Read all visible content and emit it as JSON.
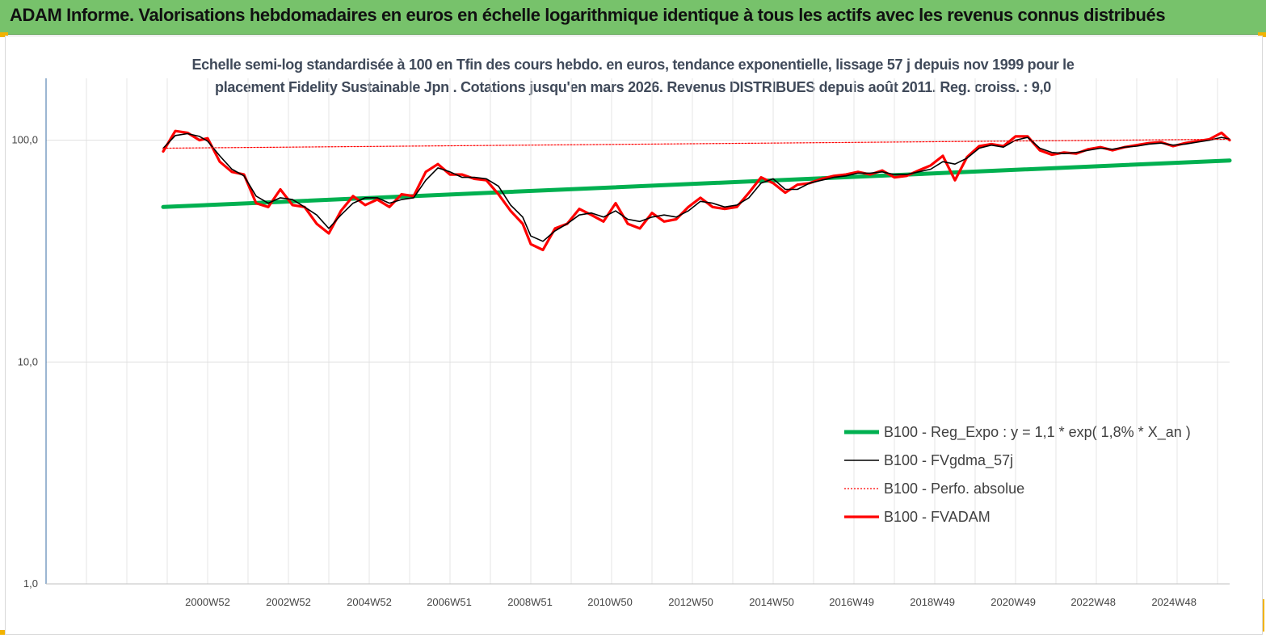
{
  "header": {
    "title": "ADAM Informe. Valorisations hebdomadaires en euros en échelle logarithmique identique à tous les actifs avec les revenus connus distribués"
  },
  "colors": {
    "banner": "#77c26b",
    "regression": "#00b050",
    "smoothed": "#000000",
    "perf_absolue": "#ff0000",
    "fvadam": "#ff0000"
  },
  "chart_data": {
    "type": "line",
    "title_lines": [
      "Echelle semi-log standardisée à 100 en Tfin des cours hebdo. en euros, tendance exponentielle, lissage 57 j depuis nov 1999 pour le",
      "placement Fidelity Sustainable Jpn . Cotations jusqu'en mars 2026. Revenus DISTRIBUES depuis août 2011. Reg. croiss. : 9,0"
    ],
    "y_scale": "log",
    "ylim": [
      1,
      190
    ],
    "y_ticks": [
      "1,0",
      "10,0",
      "100,0"
    ],
    "x_ticks": [
      "2000W52",
      "2002W52",
      "2004W52",
      "2006W51",
      "2008W51",
      "2010W50",
      "2012W50",
      "2014W50",
      "2016W49",
      "2018W49",
      "2020W49",
      "2022W48",
      "2024W48"
    ],
    "x_range": [
      1997.0,
      2026.3
    ],
    "grid": {
      "vertical": true,
      "horizontal": true
    },
    "legend_position": "bottom-right",
    "series": [
      {
        "name": "B100 - Reg_Expo : y = 1,1 * exp( 1,8% *  X_an )",
        "style": "thick-green",
        "x": [
          1999.9,
          2026.3
        ],
        "y": [
          50,
          81
        ]
      },
      {
        "name": "B100 - FVgdma_57j",
        "style": "thin-black",
        "x": [
          1999.9,
          2000.2,
          2000.5,
          2000.8,
          2001.0,
          2001.3,
          2001.6,
          2001.9,
          2002.2,
          2002.5,
          2002.8,
          2003.1,
          2003.4,
          2003.7,
          2004.0,
          2004.3,
          2004.6,
          2004.9,
          2005.2,
          2005.5,
          2005.8,
          2006.1,
          2006.4,
          2006.7,
          2007.0,
          2007.3,
          2007.6,
          2007.9,
          2008.2,
          2008.5,
          2008.8,
          2009.0,
          2009.3,
          2009.6,
          2009.9,
          2010.2,
          2010.5,
          2010.8,
          2011.1,
          2011.4,
          2011.7,
          2012.0,
          2012.3,
          2012.6,
          2012.9,
          2013.2,
          2013.5,
          2013.8,
          2014.1,
          2014.4,
          2014.7,
          2015.0,
          2015.3,
          2015.6,
          2015.9,
          2016.2,
          2016.5,
          2016.8,
          2017.1,
          2017.4,
          2017.7,
          2018.0,
          2018.3,
          2018.6,
          2018.9,
          2019.2,
          2019.5,
          2019.8,
          2020.1,
          2020.4,
          2020.7,
          2021.0,
          2021.3,
          2021.6,
          2021.9,
          2022.2,
          2022.5,
          2022.8,
          2023.1,
          2023.4,
          2023.7,
          2024.0,
          2024.3,
          2024.6,
          2024.9,
          2025.2,
          2025.5,
          2025.8,
          2026.1,
          2026.3
        ],
        "y": [
          92,
          105,
          107,
          104,
          99,
          85,
          74,
          69,
          56,
          52,
          55,
          54,
          50,
          46,
          40,
          46,
          52,
          55,
          55,
          52,
          54,
          55,
          66,
          75,
          72,
          68,
          68,
          67,
          62,
          51,
          45,
          37,
          35,
          39,
          42,
          46,
          47,
          45,
          48,
          44,
          43,
          45,
          46,
          45,
          48,
          53,
          52,
          50,
          51,
          55,
          64,
          67,
          60,
          60,
          64,
          66,
          68,
          69,
          71,
          71,
          72,
          70,
          70,
          72,
          74,
          80,
          78,
          83,
          92,
          95,
          93,
          100,
          103,
          92,
          88,
          87,
          88,
          90,
          92,
          91,
          93,
          94,
          96,
          97,
          95,
          96,
          98,
          100,
          103,
          101
        ]
      },
      {
        "name": "B100 - Perfo. absolue",
        "style": "dotted-red",
        "x": [
          1999.9,
          2026.3
        ],
        "y": [
          92,
          101
        ]
      },
      {
        "name": "B100 - FVADAM",
        "style": "thick-red",
        "x": [
          1999.9,
          2000.2,
          2000.5,
          2000.8,
          2001.0,
          2001.3,
          2001.6,
          2001.9,
          2002.2,
          2002.5,
          2002.8,
          2003.1,
          2003.4,
          2003.7,
          2004.0,
          2004.3,
          2004.6,
          2004.9,
          2005.2,
          2005.5,
          2005.8,
          2006.1,
          2006.4,
          2006.7,
          2007.0,
          2007.3,
          2007.6,
          2007.9,
          2008.2,
          2008.5,
          2008.8,
          2009.0,
          2009.3,
          2009.6,
          2009.9,
          2010.2,
          2010.5,
          2010.8,
          2011.1,
          2011.4,
          2011.7,
          2012.0,
          2012.3,
          2012.6,
          2012.9,
          2013.2,
          2013.5,
          2013.8,
          2014.1,
          2014.4,
          2014.7,
          2015.0,
          2015.3,
          2015.6,
          2015.9,
          2016.2,
          2016.5,
          2016.8,
          2017.1,
          2017.4,
          2017.7,
          2018.0,
          2018.3,
          2018.6,
          2018.9,
          2019.2,
          2019.5,
          2019.8,
          2020.1,
          2020.4,
          2020.7,
          2021.0,
          2021.3,
          2021.6,
          2021.9,
          2022.2,
          2022.5,
          2022.8,
          2023.1,
          2023.4,
          2023.7,
          2024.0,
          2024.3,
          2024.6,
          2024.9,
          2025.2,
          2025.5,
          2025.8,
          2026.1,
          2026.3
        ],
        "y": [
          89,
          110,
          108,
          100,
          102,
          80,
          72,
          70,
          52,
          50,
          60,
          51,
          50,
          42,
          38,
          48,
          56,
          51,
          54,
          50,
          57,
          56,
          72,
          78,
          70,
          70,
          67,
          66,
          57,
          48,
          42,
          34,
          32,
          40,
          42,
          49,
          46,
          43,
          52,
          42,
          40,
          47,
          43,
          44,
          50,
          55,
          50,
          49,
          50,
          58,
          68,
          64,
          58,
          63,
          64,
          67,
          69,
          70,
          72,
          70,
          73,
          68,
          69,
          73,
          77,
          85,
          66,
          84,
          94,
          96,
          94,
          104,
          104,
          90,
          86,
          88,
          87,
          91,
          93,
          90,
          93,
          95,
          97,
          98,
          94,
          97,
          99,
          101,
          108,
          100
        ]
      }
    ]
  }
}
